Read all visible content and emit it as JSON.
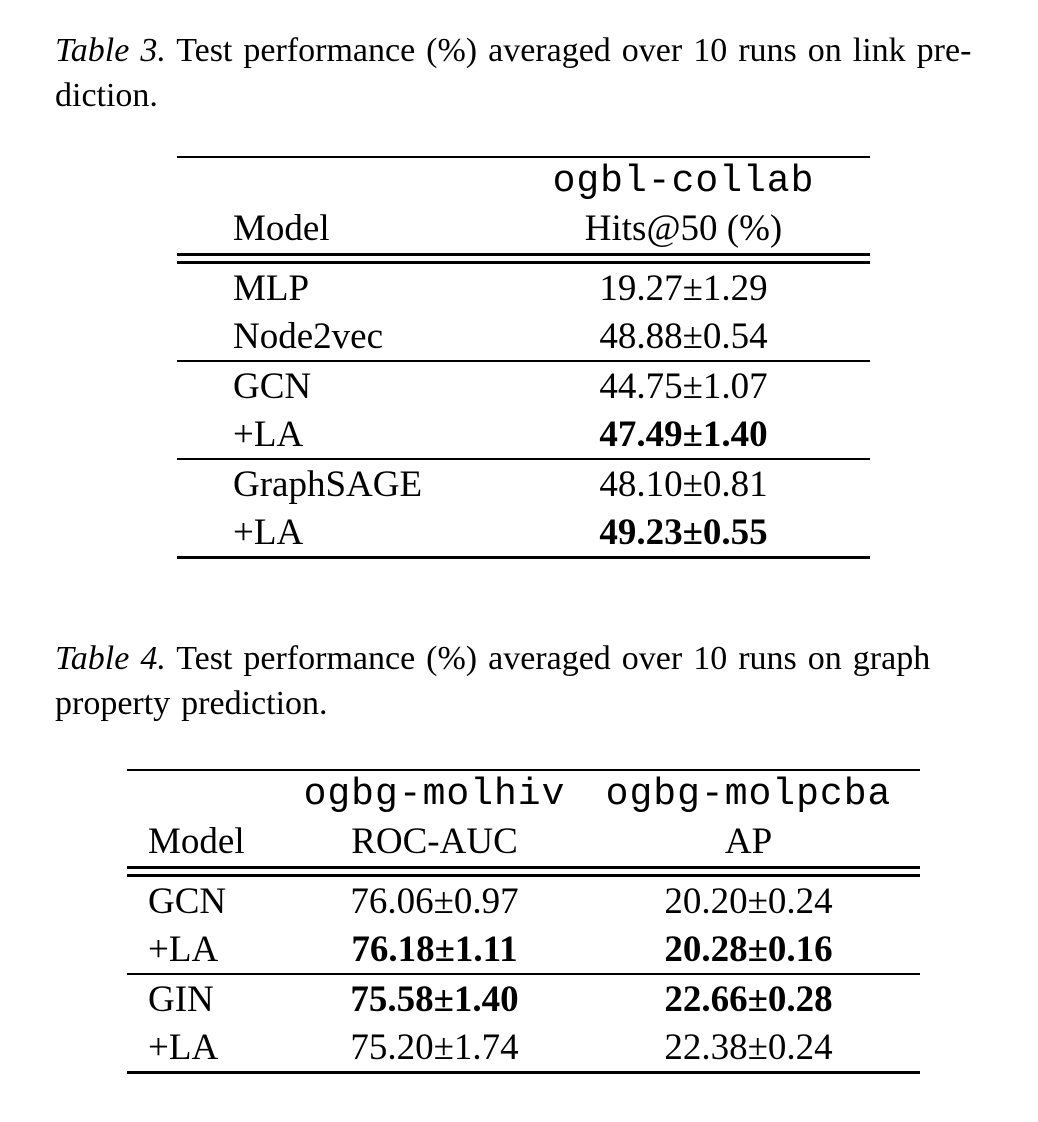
{
  "page": {
    "background": "#ffffff",
    "text_color": "#000000"
  },
  "table3": {
    "caption_label": "Table 3.",
    "caption_line1_rest": "Test performance (%) averaged over 10 runs on link pre-",
    "caption_line2": "diction.",
    "header": {
      "model_col": "Model",
      "dataset": "ogbl-collab",
      "metric": "Hits@50 (%)"
    },
    "groups": [
      {
        "rows": [
          {
            "model": "MLP",
            "value": "19.27±1.29",
            "bold": false
          },
          {
            "model": "Node2vec",
            "value": "48.88±0.54",
            "bold": false
          }
        ]
      },
      {
        "rows": [
          {
            "model": "GCN",
            "value": "44.75±1.07",
            "bold": false
          },
          {
            "model": "+LA",
            "value": "47.49±1.40",
            "bold": true
          }
        ]
      },
      {
        "rows": [
          {
            "model": "GraphSAGE",
            "value": "48.10±0.81",
            "bold": false
          },
          {
            "model": "+LA",
            "value": "49.23±0.55",
            "bold": true
          }
        ]
      }
    ]
  },
  "table4": {
    "caption_label": "Table 4.",
    "caption_line1_rest": "Test performance (%) averaged over 10 runs on graph",
    "caption_line2": "property prediction.",
    "header": {
      "model_col": "Model",
      "dataset1": "ogbg-molhiv",
      "dataset2": "ogbg-molpcba",
      "metric1": "ROC-AUC",
      "metric2": "AP"
    },
    "groups": [
      {
        "rows": [
          {
            "model": "GCN",
            "value1": "76.06±0.97",
            "bold1": false,
            "value2": "20.20±0.24",
            "bold2": false
          },
          {
            "model": "+LA",
            "value1": "76.18±1.11",
            "bold1": true,
            "value2": "20.28±0.16",
            "bold2": true
          }
        ]
      },
      {
        "rows": [
          {
            "model": "GIN",
            "value1": "75.58±1.40",
            "bold1": true,
            "value2": "22.66±0.28",
            "bold2": true
          },
          {
            "model": "+LA",
            "value1": "75.20±1.74",
            "bold1": false,
            "value2": "22.38±0.24",
            "bold2": false
          }
        ]
      }
    ]
  }
}
